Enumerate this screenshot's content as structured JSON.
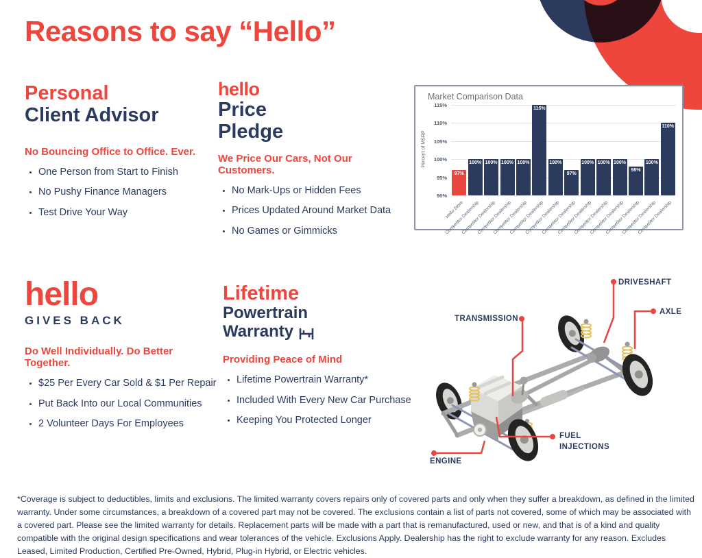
{
  "page": {
    "title": "Reasons to say “Hello”"
  },
  "colors": {
    "red": "#EE453C",
    "navy": "#2B3B5E"
  },
  "sections": {
    "advisor": {
      "title_red": "Personal",
      "title_navy": "Client Advisor",
      "subhead": "No Bouncing Office to Office. Ever.",
      "bullets": [
        "One Person from Start to Finish",
        "No Pushy Finance Managers",
        "Test Drive Your Way"
      ]
    },
    "price": {
      "logo": "hello",
      "title_line1": "Price",
      "title_line2": "Pledge",
      "subhead": "We Price Our Cars, Not Our Customers.",
      "bullets": [
        "No Mark-Ups or Hidden Fees",
        "Prices Updated Around Market Data",
        "No Games or Gimmicks"
      ]
    },
    "gives_back": {
      "logo": "hello",
      "title": "GIVES BACK",
      "subhead": "Do Well Individually. Do Better Together.",
      "bullets": [
        "$25 Per Every Car Sold & $1 Per Repair",
        "Put Back Into our Local Communities",
        "2 Volunteer Days For Employees"
      ]
    },
    "warranty": {
      "title_red": "Lifetime",
      "title_line2": "Powertrain",
      "title_line3": "Warranty",
      "subhead": "Providing Peace of Mind",
      "bullets": [
        "Lifetime Powertrain Warranty*",
        "Included With Every New Car Purchase",
        "Keeping You Protected Longer"
      ]
    }
  },
  "chart_data": {
    "type": "bar",
    "title": "Market Comparison Data",
    "xlabel": "",
    "ylabel": "Percent of MSRP",
    "ylim": [
      90,
      115
    ],
    "yticks": [
      90,
      95,
      100,
      105,
      110,
      115
    ],
    "grid": true,
    "legend": false,
    "categories": [
      "Hello Store",
      "Competitor Dealership",
      "Competitor Dealership",
      "Competitor Dealership",
      "Competitor Dealership",
      "Competitor Dealership",
      "Competitor Dealership",
      "Competitor Dealership",
      "Competitor Dealership",
      "Competitor Dealership",
      "Competitor Dealership",
      "Competitor Dealership",
      "Competitor Dealership",
      "Competitor Dealership"
    ],
    "values": [
      97,
      100,
      100,
      100,
      100,
      115,
      100,
      97,
      100,
      100,
      100,
      98,
      100,
      110
    ],
    "value_labels": [
      "97%",
      "100%",
      "100%",
      "100%",
      "100%",
      "115%",
      "100%",
      "97%",
      "100%",
      "100%",
      "100%",
      "98%",
      "100%",
      "110%"
    ],
    "highlight_index": 0,
    "highlight_color": "#E8473F",
    "bar_color": "#2B3A5D"
  },
  "diagram": {
    "transmission": "TRANSMISSION",
    "driveshaft": "DRIVESHAFT",
    "axle": "AXLE",
    "fuel_injections": "FUEL INJECTIONS",
    "engine": "ENGINE"
  },
  "footer": {
    "text": "*Coverage is subject to deductibles, limits and exclusions. The limited warranty covers repairs only of covered parts and only when they suffer a breakdown, as defined in the limited warranty. Under some circumstances, a breakdown of a covered part may not be covered. The exclusions contain a list of parts not covered, some of which may be associated with a covered part. Please see the limited warranty for details. Replacement parts will be made with a part that is remanufactured, used or new, and that is of a kind and quality compatible with the original design specifications and wear tolerances of the vehicle. Exclusions Apply. Dealership has the right to exclude warranty for any reason. Excludes Leased, Limited Production, Certified Pre-Owned, Hybrid, Plug-in Hybrid, or Electric vehicles."
  }
}
